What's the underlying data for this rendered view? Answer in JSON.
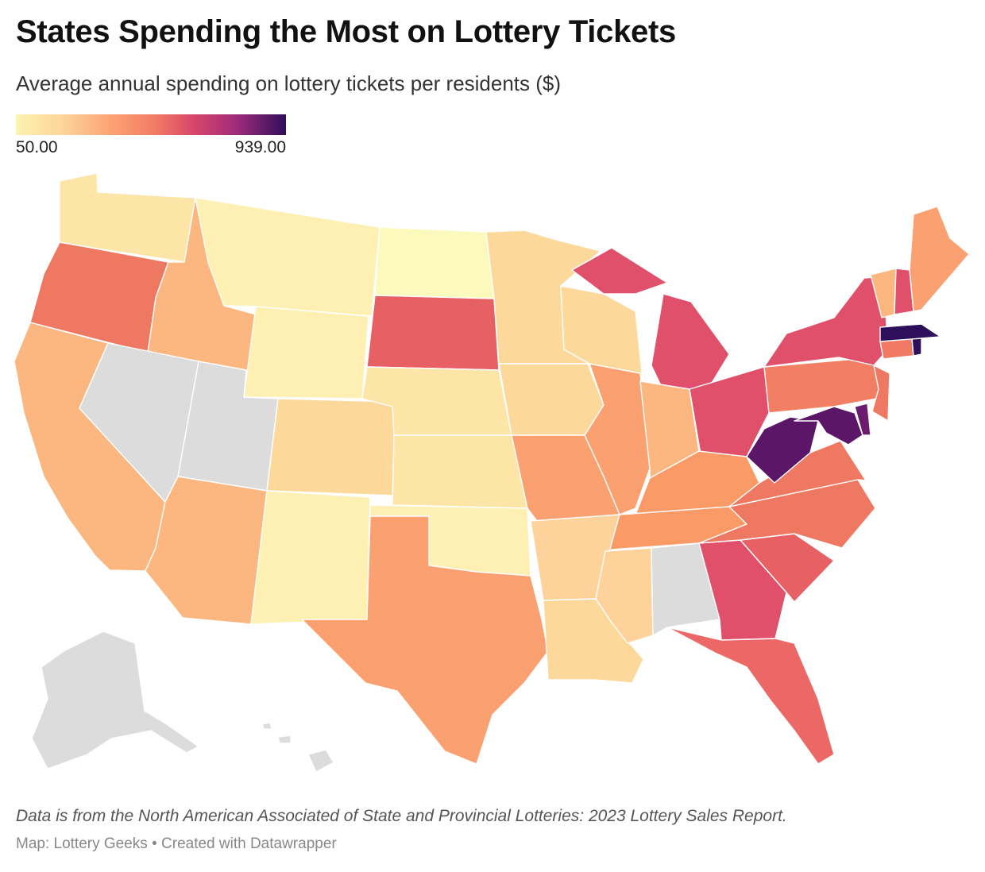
{
  "title": "States Spending the Most on Lottery Tickets",
  "subtitle": "Average annual spending on lottery tickets per residents ($)",
  "legend": {
    "min_label": "50.00",
    "max_label": "939.00",
    "min": 50,
    "max": 939
  },
  "footnote": "Data is from the North American Associated of State and Provincial Lotteries: 2023 Lottery Sales Report.",
  "credit": {
    "map_by": "Map: Lottery Geeks",
    "separator": "•",
    "created_with": "Created with Datawrapper"
  },
  "colors": {
    "no_data": "#dcdcdc",
    "scale": [
      "#fcf3b0",
      "#fdd39b",
      "#fca172",
      "#f07a63",
      "#d8456a",
      "#9e2a7b",
      "#2e0f5c"
    ]
  },
  "chart_data": {
    "type": "choropleth",
    "scale_domain": [
      50,
      939
    ],
    "states": [
      {
        "code": "WA",
        "color": "#fde5a8"
      },
      {
        "code": "OR",
        "color": "#ef7862"
      },
      {
        "code": "CA",
        "color": "#fbb77f"
      },
      {
        "code": "ID",
        "color": "#fbb77f"
      },
      {
        "code": "NV",
        "color": "#dcdcdc"
      },
      {
        "code": "UT",
        "color": "#dcdcdc"
      },
      {
        "code": "AZ",
        "color": "#fbb77f"
      },
      {
        "code": "MT",
        "color": "#fdf0b2"
      },
      {
        "code": "WY",
        "color": "#fdf0b2"
      },
      {
        "code": "CO",
        "color": "#fdd89b"
      },
      {
        "code": "NM",
        "color": "#fdf0b2"
      },
      {
        "code": "ND",
        "color": "#fbf9bb"
      },
      {
        "code": "SD",
        "color": "#e76063"
      },
      {
        "code": "NE",
        "color": "#fde5a8"
      },
      {
        "code": "KS",
        "color": "#fde5a8"
      },
      {
        "code": "OK",
        "color": "#fdf0b2"
      },
      {
        "code": "TX",
        "color": "#fba070"
      },
      {
        "code": "MN",
        "color": "#fdd89b"
      },
      {
        "code": "IA",
        "color": "#fdd89b"
      },
      {
        "code": "MO",
        "color": "#fba070"
      },
      {
        "code": "AR",
        "color": "#fdd39b"
      },
      {
        "code": "LA",
        "color": "#fdd89b"
      },
      {
        "code": "WI",
        "color": "#fdd89b"
      },
      {
        "code": "IL",
        "color": "#fba070"
      },
      {
        "code": "MI",
        "color": "#e0506a"
      },
      {
        "code": "IN",
        "color": "#fbb77f"
      },
      {
        "code": "OH",
        "color": "#e0506a"
      },
      {
        "code": "KY",
        "color": "#fa9a66"
      },
      {
        "code": "TN",
        "color": "#fa9a66"
      },
      {
        "code": "MS",
        "color": "#fdd39b"
      },
      {
        "code": "AL",
        "color": "#dcdcdc"
      },
      {
        "code": "GA",
        "color": "#e0506a"
      },
      {
        "code": "FL",
        "color": "#ec6866"
      },
      {
        "code": "SC",
        "color": "#e76063"
      },
      {
        "code": "NC",
        "color": "#ef7862"
      },
      {
        "code": "VA",
        "color": "#ef7862"
      },
      {
        "code": "WV",
        "color": "#5b1668"
      },
      {
        "code": "MD",
        "color": "#5b1668"
      },
      {
        "code": "DE",
        "color": "#6c1b6e"
      },
      {
        "code": "PA",
        "color": "#f27f63"
      },
      {
        "code": "NJ",
        "color": "#ef7862"
      },
      {
        "code": "NY",
        "color": "#e0506a"
      },
      {
        "code": "CT",
        "color": "#f07a63"
      },
      {
        "code": "RI",
        "color": "#2e0f5c"
      },
      {
        "code": "MA",
        "color": "#2e0f5c"
      },
      {
        "code": "VT",
        "color": "#fbb77f"
      },
      {
        "code": "NH",
        "color": "#e0506a"
      },
      {
        "code": "ME",
        "color": "#fba070"
      },
      {
        "code": "AK",
        "color": "#dcdcdc"
      },
      {
        "code": "HI",
        "color": "#dcdcdc"
      }
    ]
  }
}
